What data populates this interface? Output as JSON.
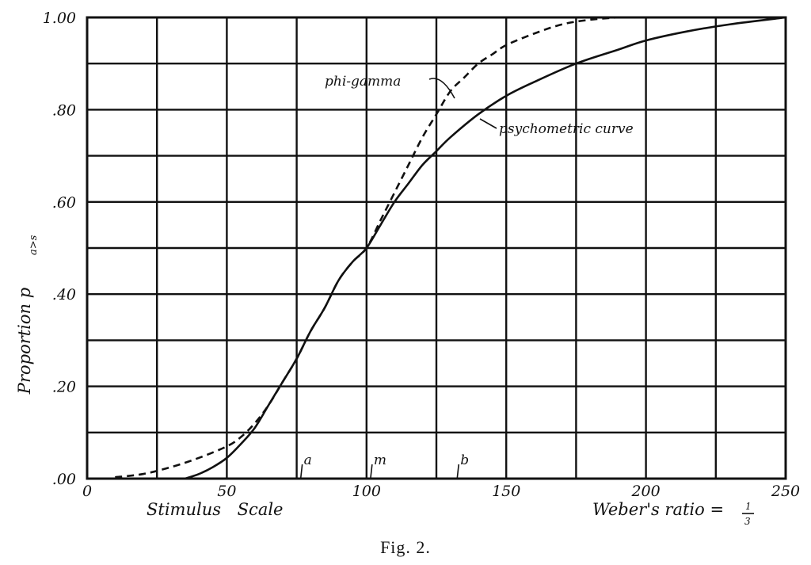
{
  "chart_data": {
    "type": "line",
    "xlim": [
      0,
      250
    ],
    "ylim": [
      0,
      1
    ],
    "grid": true,
    "x_ticks": [
      {
        "value": 0,
        "label": "0"
      },
      {
        "value": 50,
        "label": "50"
      },
      {
        "value": 100,
        "label": "100"
      },
      {
        "value": 150,
        "label": "150"
      },
      {
        "value": 200,
        "label": "200"
      },
      {
        "value": 250,
        "label": "250"
      }
    ],
    "y_ticks": [
      {
        "value": 0,
        "label": ".00"
      },
      {
        "value": 0.2,
        "label": ".20"
      },
      {
        "value": 0.4,
        "label": ".40"
      },
      {
        "value": 0.6,
        "label": ".60"
      },
      {
        "value": 0.8,
        "label": ".80"
      },
      {
        "value": 1.0,
        "label": "1.00"
      }
    ],
    "xlabel": "Stimulus Scale",
    "ylabel": "Proportion p",
    "ylabel_sub": "a>s",
    "xlabel_right": "Weber's ratio =",
    "series": [
      {
        "name": "psychometric curve",
        "style": "solid",
        "x": [
          35,
          40,
          45,
          50,
          55,
          60,
          65,
          70,
          75,
          80,
          85,
          90,
          95,
          100,
          105,
          110,
          115,
          120,
          125,
          130,
          140,
          150,
          160,
          175,
          190,
          200,
          215,
          230,
          250
        ],
        "y": [
          0.0,
          0.01,
          0.025,
          0.045,
          0.075,
          0.11,
          0.16,
          0.21,
          0.26,
          0.32,
          0.37,
          0.43,
          0.47,
          0.5,
          0.55,
          0.6,
          0.64,
          0.68,
          0.71,
          0.74,
          0.79,
          0.83,
          0.86,
          0.9,
          0.93,
          0.95,
          0.97,
          0.985,
          1.0
        ]
      },
      {
        "name": "phi-gamma",
        "style": "dashed",
        "x": [
          10,
          20,
          30,
          40,
          50,
          55,
          60,
          65,
          70,
          75,
          80,
          85,
          90,
          95,
          100,
          105,
          110,
          115,
          120,
          125,
          130,
          135,
          140,
          145,
          150,
          160,
          170,
          180,
          190
        ],
        "y": [
          0.003,
          0.01,
          0.025,
          0.045,
          0.07,
          0.09,
          0.12,
          0.16,
          0.21,
          0.26,
          0.32,
          0.37,
          0.43,
          0.47,
          0.5,
          0.56,
          0.62,
          0.68,
          0.74,
          0.79,
          0.84,
          0.87,
          0.9,
          0.92,
          0.94,
          0.965,
          0.985,
          0.995,
          1.0
        ]
      }
    ],
    "annotations": [
      {
        "text": "phi-gamma",
        "series": "phi-gamma"
      },
      {
        "text": "psychometric curve",
        "series": "psychometric curve"
      }
    ],
    "markers": [
      {
        "label": "a",
        "x": 77
      },
      {
        "label": "m",
        "x": 102
      },
      {
        "label": "b",
        "x": 133
      }
    ]
  },
  "caption": "Fig. 2."
}
